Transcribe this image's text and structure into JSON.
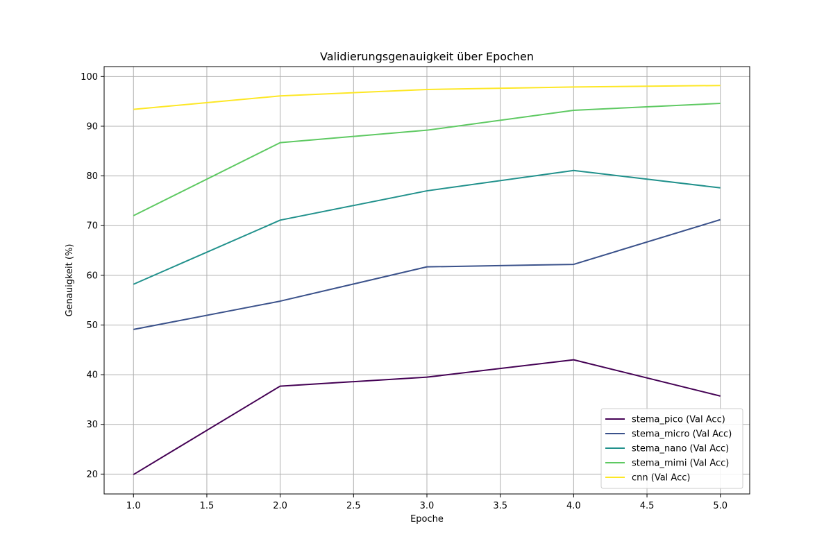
{
  "chart_data": {
    "type": "line",
    "title": "Validierungsgenauigkeit über Epochen",
    "xlabel": "Epoche",
    "ylabel": "Genauigkeit (%)",
    "x": [
      1.0,
      2.0,
      3.0,
      4.0,
      5.0
    ],
    "xlim": [
      0.8,
      5.2
    ],
    "ylim": [
      16,
      102
    ],
    "xticks": [
      1.0,
      1.5,
      2.0,
      2.5,
      3.0,
      3.5,
      4.0,
      4.5,
      5.0
    ],
    "xtick_labels": [
      "1.0",
      "1.5",
      "2.0",
      "2.5",
      "3.0",
      "3.5",
      "4.0",
      "4.5",
      "5.0"
    ],
    "yticks": [
      20,
      30,
      40,
      50,
      60,
      70,
      80,
      90,
      100
    ],
    "ytick_labels": [
      "20",
      "30",
      "40",
      "50",
      "60",
      "70",
      "80",
      "90",
      "100"
    ],
    "grid": true,
    "legend_position": "lower-right",
    "series": [
      {
        "name": "stema_pico (Val Acc)",
        "color": "#440154",
        "values": [
          19.9,
          37.7,
          39.5,
          43.0,
          35.7
        ]
      },
      {
        "name": "stema_micro (Val Acc)",
        "color": "#3b528b",
        "values": [
          49.1,
          54.8,
          61.7,
          62.2,
          71.2
        ]
      },
      {
        "name": "stema_nano (Val Acc)",
        "color": "#21918c",
        "values": [
          58.2,
          71.1,
          77.0,
          81.1,
          77.6
        ]
      },
      {
        "name": "stema_mimi (Val Acc)",
        "color": "#5ec962",
        "values": [
          72.0,
          86.7,
          89.2,
          93.2,
          94.6
        ]
      },
      {
        "name": "cnn (Val Acc)",
        "color": "#fde725",
        "values": [
          93.4,
          96.1,
          97.4,
          97.9,
          98.2
        ]
      }
    ]
  }
}
